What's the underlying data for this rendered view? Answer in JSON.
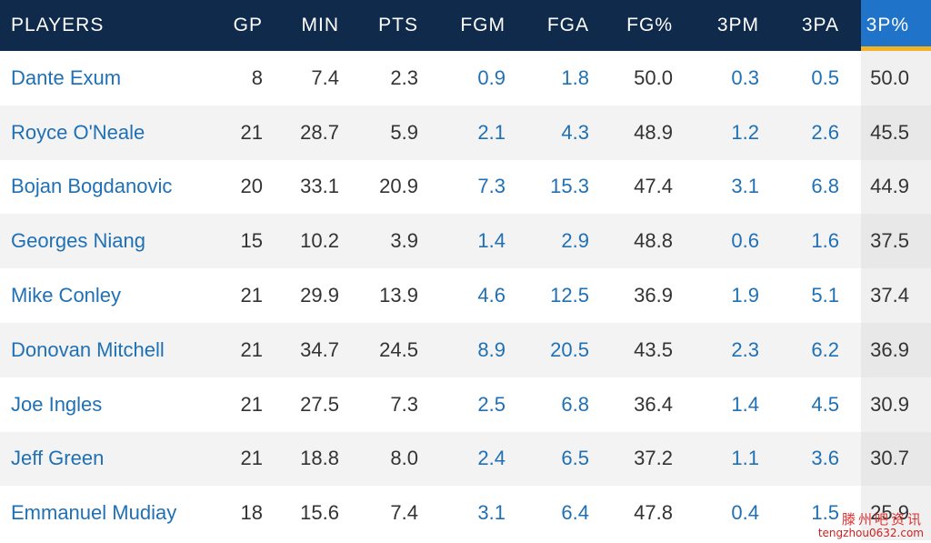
{
  "table": {
    "headers": [
      "PLAYERS",
      "GP",
      "MIN",
      "PTS",
      "FGM",
      "FGA",
      "FG%",
      "3PM",
      "3PA",
      "3P%"
    ],
    "rows": [
      [
        "Dante Exum",
        "8",
        "7.4",
        "2.3",
        "0.9",
        "1.8",
        "50.0",
        "0.3",
        "0.5",
        "50.0"
      ],
      [
        "Royce O'Neale",
        "21",
        "28.7",
        "5.9",
        "2.1",
        "4.3",
        "48.9",
        "1.2",
        "2.6",
        "45.5"
      ],
      [
        "Bojan Bogdanovic",
        "20",
        "33.1",
        "20.9",
        "7.3",
        "15.3",
        "47.4",
        "3.1",
        "6.8",
        "44.9"
      ],
      [
        "Georges Niang",
        "15",
        "10.2",
        "3.9",
        "1.4",
        "2.9",
        "48.8",
        "0.6",
        "1.6",
        "37.5"
      ],
      [
        "Mike Conley",
        "21",
        "29.9",
        "13.9",
        "4.6",
        "12.5",
        "36.9",
        "1.9",
        "5.1",
        "37.4"
      ],
      [
        "Donovan Mitchell",
        "21",
        "34.7",
        "24.5",
        "8.9",
        "20.5",
        "43.5",
        "2.3",
        "6.2",
        "36.9"
      ],
      [
        "Joe Ingles",
        "21",
        "27.5",
        "7.3",
        "2.5",
        "6.8",
        "36.4",
        "1.4",
        "4.5",
        "30.9"
      ],
      [
        "Jeff Green",
        "21",
        "18.8",
        "8.0",
        "2.4",
        "6.5",
        "37.2",
        "1.1",
        "3.6",
        "30.7"
      ],
      [
        "Emmanuel Mudiay",
        "18",
        "15.6",
        "7.4",
        "3.1",
        "6.4",
        "47.8",
        "0.4",
        "1.5",
        "25.9"
      ]
    ]
  },
  "watermark": {
    "text": "滕州吧资讯",
    "url": "tengzhou0632.com"
  },
  "colors": {
    "header_bg": "#0f2a4a",
    "sorted_header_bg": "#1f73c8",
    "sort_indicator": "#f4b324",
    "link_text": "#1f70b5"
  }
}
